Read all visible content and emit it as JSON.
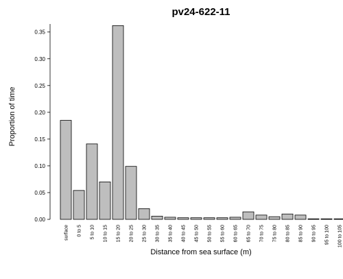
{
  "chart_data": {
    "type": "bar",
    "title": "pv24-622-11",
    "xlabel": "Distance from sea surface (m)",
    "ylabel": "Proportion of time",
    "ylim": [
      0,
      0.365
    ],
    "yticks": [
      "0.00",
      "0.05",
      "0.10",
      "0.15",
      "0.20",
      "0.25",
      "0.30",
      "0.35"
    ],
    "ytick_values": [
      0,
      0.05,
      0.1,
      0.15,
      0.2,
      0.25,
      0.3,
      0.35
    ],
    "grid": false,
    "categories": [
      "surface",
      "0 to 5",
      "5 to 10",
      "10 to 15",
      "15 to 20",
      "20 to 25",
      "25 to 30",
      "30 to 35",
      "35 to 40",
      "40 to 45",
      "45 to 50",
      "50 to 55",
      "55 to 60",
      "60 to 65",
      "65 to 70",
      "70 to 75",
      "75 to 80",
      "80 to 85",
      "85 to 90",
      "90 to 95",
      "95 to 100",
      "100 to 105"
    ],
    "values": [
      0.185,
      0.054,
      0.141,
      0.07,
      0.362,
      0.099,
      0.02,
      0.006,
      0.004,
      0.003,
      0.003,
      0.003,
      0.003,
      0.004,
      0.014,
      0.008,
      0.005,
      0.01,
      0.008,
      0.001,
      0.001,
      0.001
    ],
    "bar_color": "#bebebe"
  }
}
